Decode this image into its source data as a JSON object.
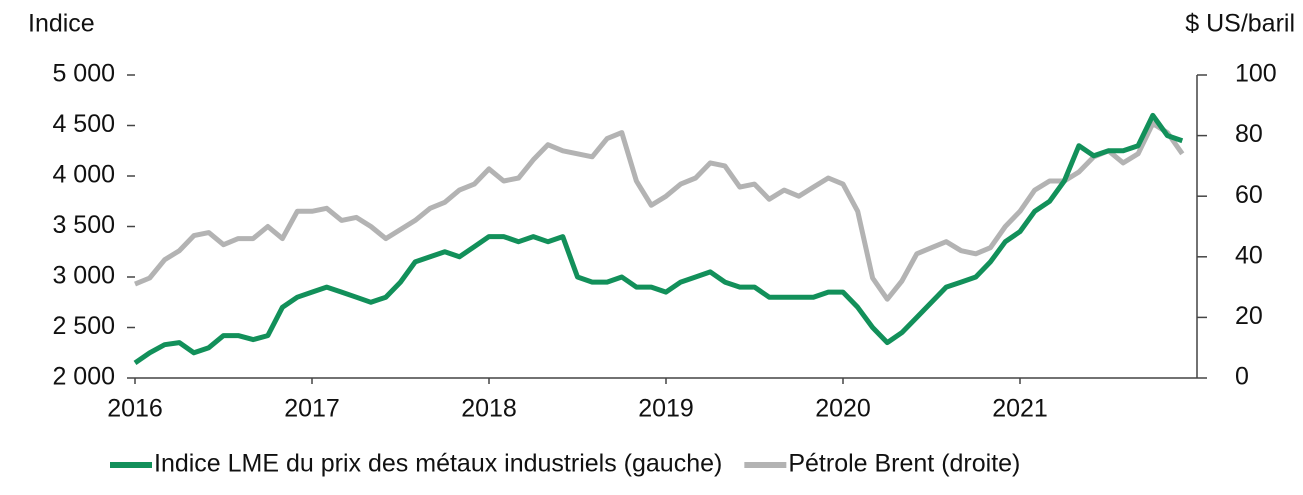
{
  "chart_data": {
    "type": "line",
    "y_label": "Indice",
    "y2_label": "$ US/baril",
    "x": [
      2016,
      2016.083,
      2016.167,
      2016.25,
      2016.333,
      2016.417,
      2016.5,
      2016.583,
      2016.667,
      2016.75,
      2016.833,
      2016.917,
      2017,
      2017.083,
      2017.167,
      2017.25,
      2017.333,
      2017.417,
      2017.5,
      2017.583,
      2017.667,
      2017.75,
      2017.833,
      2017.917,
      2018,
      2018.083,
      2018.167,
      2018.25,
      2018.333,
      2018.417,
      2018.5,
      2018.583,
      2018.667,
      2018.75,
      2018.833,
      2018.917,
      2019,
      2019.083,
      2019.167,
      2019.25,
      2019.333,
      2019.417,
      2019.5,
      2019.583,
      2019.667,
      2019.75,
      2019.833,
      2019.917,
      2020,
      2020.083,
      2020.167,
      2020.25,
      2020.333,
      2020.417,
      2020.5,
      2020.583,
      2020.667,
      2020.75,
      2020.833,
      2020.917,
      2021,
      2021.083,
      2021.167,
      2021.25,
      2021.333,
      2021.417,
      2021.5,
      2021.583,
      2021.667,
      2021.75,
      2021.833,
      2021.917
    ],
    "series": [
      {
        "name": "Indice LME du prix des métaux industriels (gauche)",
        "color": "#12905a",
        "axis": "y",
        "values": [
          2150,
          2250,
          2330,
          2350,
          2250,
          2300,
          2420,
          2420,
          2380,
          2420,
          2700,
          2800,
          2850,
          2900,
          2850,
          2800,
          2750,
          2800,
          2950,
          3150,
          3200,
          3250,
          3200,
          3300,
          3400,
          3400,
          3350,
          3400,
          3350,
          3400,
          3000,
          2950,
          2950,
          3000,
          2900,
          2900,
          2850,
          2950,
          3000,
          3050,
          2950,
          2900,
          2900,
          2800,
          2800,
          2800,
          2800,
          2850,
          2850,
          2700,
          2500,
          2350,
          2450,
          2600,
          2750,
          2900,
          2950,
          3000,
          3150,
          3350,
          3450,
          3650,
          3750,
          3950,
          4300,
          4200,
          4250,
          4250,
          4300,
          4600,
          4400,
          4350
        ]
      },
      {
        "name": "Pétrole Brent (droite)",
        "color": "#b3b3b3",
        "axis": "y2",
        "values": [
          31,
          33,
          39,
          42,
          47,
          48,
          44,
          46,
          46,
          50,
          46,
          55,
          55,
          56,
          52,
          53,
          50,
          46,
          49,
          52,
          56,
          58,
          62,
          64,
          69,
          65,
          66,
          72,
          77,
          75,
          74,
          73,
          79,
          81,
          65,
          57,
          60,
          64,
          66,
          71,
          70,
          63,
          64,
          59,
          62,
          60,
          63,
          66,
          64,
          55,
          33,
          26,
          32,
          41,
          43,
          45,
          42,
          41,
          43,
          50,
          55,
          62,
          65,
          65,
          68,
          73,
          75,
          71,
          74,
          84,
          81,
          74
        ]
      }
    ],
    "xlim": [
      2016,
      2022
    ],
    "xticks": [
      2016,
      2017,
      2018,
      2019,
      2020,
      2021
    ],
    "ylim": [
      2000,
      5000
    ],
    "yticks": [
      {
        "value": 2000,
        "label": "2 000"
      },
      {
        "value": 2500,
        "label": "2 500"
      },
      {
        "value": 3000,
        "label": "3 000"
      },
      {
        "value": 3500,
        "label": "3 500"
      },
      {
        "value": 4000,
        "label": "4 000"
      },
      {
        "value": 4500,
        "label": "4 500"
      },
      {
        "value": 5000,
        "label": "5 000"
      }
    ],
    "y2lim": [
      0,
      100
    ],
    "y2ticks": [
      0,
      20,
      40,
      60,
      80,
      100
    ],
    "legend": "bottom"
  }
}
